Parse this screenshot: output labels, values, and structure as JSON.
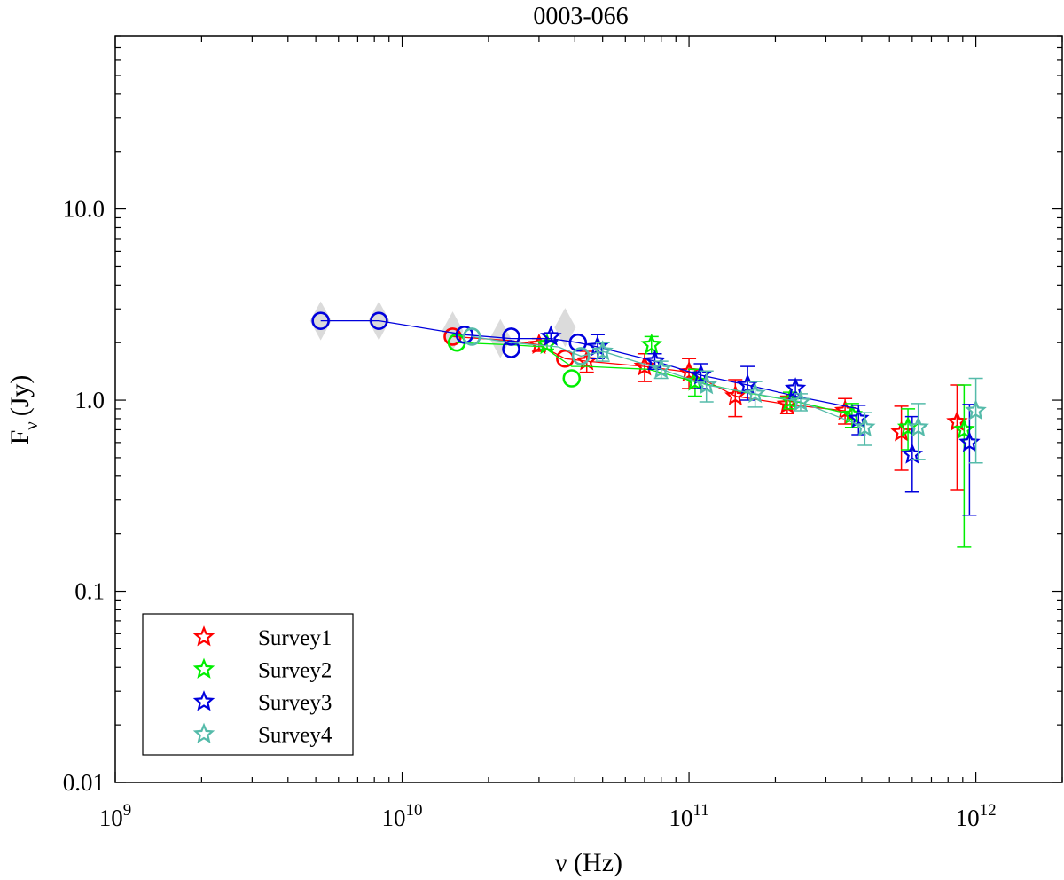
{
  "chart_data": {
    "type": "scatter",
    "title": "0003-066",
    "xlabel": "ν (Hz)",
    "ylabel_main": "F",
    "ylabel_sub": "ν",
    "ylabel_unit": "(Jy)",
    "xscale": "log",
    "yscale": "log",
    "xlim": [
      1000000000.0,
      2000000000000.0
    ],
    "ylim": [
      0.01,
      80
    ],
    "grid": false,
    "legend_position": "bottom-left",
    "x_ticks": [
      {
        "value": 1000000000.0,
        "base": "10",
        "exp": "9"
      },
      {
        "value": 10000000000.0,
        "base": "10",
        "exp": "10"
      },
      {
        "value": 100000000000.0,
        "base": "10",
        "exp": "11"
      },
      {
        "value": 1000000000000.0,
        "base": "10",
        "exp": "12"
      }
    ],
    "y_ticks": [
      {
        "value": 0.01,
        "label": "0.01"
      },
      {
        "value": 0.1,
        "label": "0.1"
      },
      {
        "value": 1,
        "label": "1.0"
      },
      {
        "value": 10,
        "label": "10.0"
      }
    ],
    "series": [
      {
        "name": "Survey1",
        "color": "#ff0000",
        "line": [
          [
            15000000000.0,
            2.15
          ],
          [
            24000000000.0,
            2.05
          ],
          [
            30000000000.0,
            1.95
          ],
          [
            37000000000.0,
            1.65
          ],
          [
            44000000000.0,
            1.6
          ],
          [
            70000000000.0,
            1.5
          ],
          [
            100000000000.0,
            1.4
          ],
          [
            145000000000.0,
            1.05
          ],
          [
            220000000000.0,
            0.95
          ],
          [
            350000000000.0,
            0.88
          ]
        ],
        "circles": [
          {
            "x": 15000000000.0,
            "y": 2.15
          },
          {
            "x": 37000000000.0,
            "y": 1.65
          }
        ],
        "stars": [
          {
            "x": 30000000000.0,
            "y": 1.95,
            "lo": 1.8,
            "hi": 2.1
          },
          {
            "x": 44000000000.0,
            "y": 1.6,
            "lo": 1.4,
            "hi": 1.8
          },
          {
            "x": 70000000000.0,
            "y": 1.5,
            "lo": 1.25,
            "hi": 1.75
          },
          {
            "x": 100000000000.0,
            "y": 1.4,
            "lo": 1.15,
            "hi": 1.65
          },
          {
            "x": 145000000000.0,
            "y": 1.05,
            "lo": 0.82,
            "hi": 1.28
          },
          {
            "x": 220000000000.0,
            "y": 0.95,
            "lo": 0.85,
            "hi": 1.05
          },
          {
            "x": 350000000000.0,
            "y": 0.88,
            "lo": 0.75,
            "hi": 1.02
          },
          {
            "x": 550000000000.0,
            "y": 0.68,
            "lo": 0.43,
            "hi": 0.93
          },
          {
            "x": 860000000000.0,
            "y": 0.77,
            "lo": 0.34,
            "hi": 1.2
          }
        ]
      },
      {
        "name": "Survey2",
        "color": "#00ee00",
        "line": [
          [
            15500000000.0,
            2.0
          ],
          [
            24000000000.0,
            1.95
          ],
          [
            31000000000.0,
            1.9
          ],
          [
            39000000000.0,
            1.5
          ],
          [
            44000000000.0,
            1.5
          ],
          [
            72000000000.0,
            1.45
          ],
          [
            105000000000.0,
            1.25
          ],
          [
            155000000000.0,
            1.1
          ],
          [
            225000000000.0,
            1.0
          ],
          [
            370000000000.0,
            0.84
          ]
        ],
        "circles": [
          {
            "x": 15500000000.0,
            "y": 2.0
          },
          {
            "x": 39000000000.0,
            "y": 1.3
          }
        ],
        "stars": [
          {
            "x": 32000000000.0,
            "y": 1.95,
            "lo": 1.85,
            "hi": 2.05
          },
          {
            "x": 74000000000.0,
            "y": 1.95,
            "lo": 1.75,
            "hi": 2.15
          },
          {
            "x": 105000000000.0,
            "y": 1.25,
            "lo": 1.05,
            "hi": 1.45
          },
          {
            "x": 225000000000.0,
            "y": 1.0,
            "lo": 0.9,
            "hi": 1.1
          },
          {
            "x": 370000000000.0,
            "y": 0.84,
            "lo": 0.72,
            "hi": 0.96
          },
          {
            "x": 580000000000.0,
            "y": 0.72,
            "lo": 0.55,
            "hi": 0.9
          },
          {
            "x": 910000000000.0,
            "y": 0.7,
            "lo": 0.17,
            "hi": 1.2
          }
        ]
      },
      {
        "name": "Survey3",
        "color": "#0000dd",
        "line": [
          [
            5200000000.0,
            2.6
          ],
          [
            8300000000.0,
            2.6
          ],
          [
            16500000000.0,
            2.2
          ],
          [
            24000000000.0,
            2.1
          ],
          [
            33000000000.0,
            2.1
          ],
          [
            41000000000.0,
            2.0
          ],
          [
            48000000000.0,
            1.9
          ],
          [
            76000000000.0,
            1.6
          ],
          [
            110000000000.0,
            1.35
          ],
          [
            160000000000.0,
            1.2
          ],
          [
            235000000000.0,
            1.05
          ],
          [
            390000000000.0,
            0.9
          ]
        ],
        "circles": [
          {
            "x": 5200000000.0,
            "y": 2.6
          },
          {
            "x": 8300000000.0,
            "y": 2.6
          },
          {
            "x": 16500000000.0,
            "y": 2.2
          },
          {
            "x": 24000000000.0,
            "y": 2.15
          },
          {
            "x": 24000000000.0,
            "y": 1.85
          },
          {
            "x": 41000000000.0,
            "y": 2.0
          }
        ],
        "stars": [
          {
            "x": 33000000000.0,
            "y": 2.15,
            "lo": 2.05,
            "hi": 2.25
          },
          {
            "x": 48000000000.0,
            "y": 1.9,
            "lo": 1.65,
            "hi": 2.2
          },
          {
            "x": 76000000000.0,
            "y": 1.6,
            "lo": 1.45,
            "hi": 1.75
          },
          {
            "x": 110000000000.0,
            "y": 1.35,
            "lo": 1.15,
            "hi": 1.55
          },
          {
            "x": 160000000000.0,
            "y": 1.2,
            "lo": 1.0,
            "hi": 1.5
          },
          {
            "x": 235000000000.0,
            "y": 1.15,
            "lo": 1.02,
            "hi": 1.28
          },
          {
            "x": 390000000000.0,
            "y": 0.8,
            "lo": 0.66,
            "hi": 0.94
          },
          {
            "x": 600000000000.0,
            "y": 0.52,
            "lo": 0.33,
            "hi": 0.82
          },
          {
            "x": 950000000000.0,
            "y": 0.6,
            "lo": 0.25,
            "hi": 0.95
          }
        ]
      },
      {
        "name": "Survey4",
        "color": "#55bbaa",
        "line": [
          [
            17500000000.0,
            2.15
          ],
          [
            24000000000.0,
            2.0
          ],
          [
            35000000000.0,
            1.9
          ],
          [
            42000000000.0,
            1.7
          ],
          [
            50000000000.0,
            1.8
          ],
          [
            80000000000.0,
            1.45
          ],
          [
            115000000000.0,
            1.2
          ],
          [
            170000000000.0,
            1.08
          ],
          [
            245000000000.0,
            0.98
          ],
          [
            410000000000.0,
            0.72
          ]
        ],
        "circles": [
          {
            "x": 17500000000.0,
            "y": 2.15
          },
          {
            "x": 42000000000.0,
            "y": 1.7
          }
        ],
        "stars": [
          {
            "x": 50000000000.0,
            "y": 1.8,
            "lo": 1.6,
            "hi": 2.0
          },
          {
            "x": 80000000000.0,
            "y": 1.45,
            "lo": 1.3,
            "hi": 1.6
          },
          {
            "x": 115000000000.0,
            "y": 1.2,
            "lo": 0.98,
            "hi": 1.42
          },
          {
            "x": 170000000000.0,
            "y": 1.08,
            "lo": 0.92,
            "hi": 1.25
          },
          {
            "x": 245000000000.0,
            "y": 0.98,
            "lo": 0.88,
            "hi": 1.08
          },
          {
            "x": 410000000000.0,
            "y": 0.72,
            "lo": 0.58,
            "hi": 0.86
          },
          {
            "x": 630000000000.0,
            "y": 0.72,
            "lo": 0.49,
            "hi": 0.96
          },
          {
            "x": 1000000000000.0,
            "y": 0.88,
            "lo": 0.47,
            "hi": 1.3
          }
        ]
      }
    ],
    "gray_markers": [
      {
        "x": 5200000000.0,
        "y": 2.6
      },
      {
        "x": 8300000000.0,
        "y": 2.6
      },
      {
        "x": 15000000000.0,
        "y": 2.3
      },
      {
        "x": 22000000000.0,
        "y": 2.1
      },
      {
        "x": 37000000000.0,
        "y": 2.4
      }
    ]
  }
}
